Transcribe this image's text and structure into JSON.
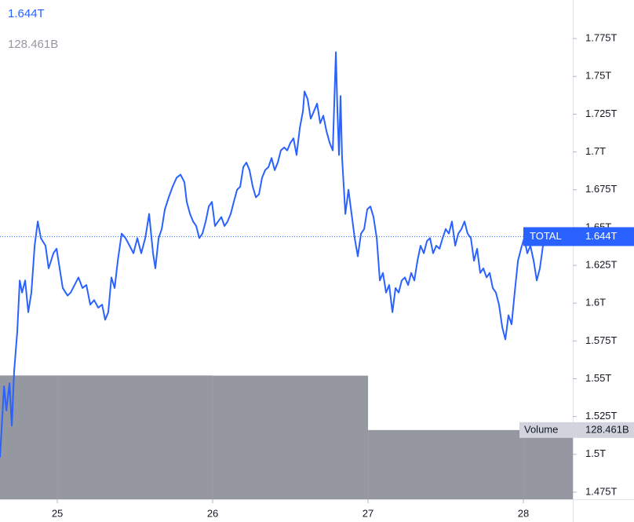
{
  "chart_data": {
    "type": "line",
    "series": [
      {
        "name": "TOTAL",
        "color": "#2962ff",
        "last_label": "1.644T",
        "x": [
          24.631,
          24.657,
          24.672,
          24.692,
          24.707,
          24.722,
          24.742,
          24.758,
          24.773,
          24.793,
          24.813,
          24.833,
          24.854,
          24.874,
          24.894,
          24.924,
          24.944,
          24.975,
          24.995,
          25.015,
          25.035,
          25.066,
          25.086,
          25.111,
          25.136,
          25.162,
          25.187,
          25.212,
          25.237,
          25.263,
          25.288,
          25.308,
          25.328,
          25.348,
          25.369,
          25.389,
          25.414,
          25.439,
          25.465,
          25.49,
          25.515,
          25.54,
          25.566,
          25.591,
          25.616,
          25.631,
          25.652,
          25.672,
          25.692,
          25.717,
          25.742,
          25.768,
          25.793,
          25.818,
          25.833,
          25.854,
          25.874,
          25.894,
          25.914,
          25.934,
          25.955,
          25.975,
          25.995,
          26.015,
          26.035,
          26.056,
          26.076,
          26.096,
          26.116,
          26.136,
          26.157,
          26.177,
          26.197,
          26.217,
          26.237,
          26.258,
          26.278,
          26.298,
          26.318,
          26.338,
          26.359,
          26.379,
          26.399,
          26.419,
          26.439,
          26.46,
          26.48,
          26.5,
          26.52,
          26.54,
          26.561,
          26.581,
          26.591,
          26.611,
          26.631,
          26.652,
          26.672,
          26.692,
          26.712,
          26.732,
          26.753,
          26.773,
          26.793,
          26.803,
          26.813,
          26.823,
          26.833,
          26.854,
          26.874,
          26.894,
          26.914,
          26.934,
          26.955,
          26.975,
          26.995,
          27.015,
          27.035,
          27.056,
          27.076,
          27.096,
          27.116,
          27.136,
          27.157,
          27.177,
          27.197,
          27.217,
          27.237,
          27.258,
          27.278,
          27.298,
          27.318,
          27.338,
          27.359,
          27.379,
          27.399,
          27.419,
          27.439,
          27.46,
          27.48,
          27.5,
          27.52,
          27.54,
          27.561,
          27.581,
          27.601,
          27.621,
          27.641,
          27.662,
          27.682,
          27.702,
          27.722,
          27.742,
          27.763,
          27.783,
          27.803,
          27.823,
          27.843,
          27.864,
          27.884,
          27.904,
          27.924,
          27.944,
          27.965,
          27.985,
          28.005,
          28.025,
          28.045,
          28.066,
          28.086,
          28.106,
          28.126,
          28.146
        ],
        "values": [
          1.498,
          1.545,
          1.529,
          1.547,
          1.519,
          1.555,
          1.581,
          1.615,
          1.607,
          1.615,
          1.594,
          1.607,
          1.638,
          1.654,
          1.643,
          1.638,
          1.623,
          1.633,
          1.636,
          1.623,
          1.61,
          1.605,
          1.607,
          1.612,
          1.617,
          1.61,
          1.612,
          1.599,
          1.602,
          1.597,
          1.599,
          1.589,
          1.594,
          1.617,
          1.61,
          1.628,
          1.646,
          1.643,
          1.638,
          1.633,
          1.643,
          1.633,
          1.643,
          1.659,
          1.633,
          1.623,
          1.643,
          1.649,
          1.662,
          1.67,
          1.677,
          1.683,
          1.685,
          1.68,
          1.667,
          1.659,
          1.654,
          1.651,
          1.643,
          1.646,
          1.654,
          1.664,
          1.667,
          1.651,
          1.654,
          1.657,
          1.651,
          1.654,
          1.659,
          1.667,
          1.675,
          1.677,
          1.69,
          1.693,
          1.688,
          1.677,
          1.67,
          1.672,
          1.683,
          1.688,
          1.69,
          1.696,
          1.688,
          1.693,
          1.701,
          1.703,
          1.701,
          1.706,
          1.709,
          1.698,
          1.716,
          1.727,
          1.74,
          1.735,
          1.722,
          1.727,
          1.732,
          1.719,
          1.724,
          1.714,
          1.706,
          1.701,
          1.766,
          1.727,
          1.698,
          1.737,
          1.696,
          1.659,
          1.675,
          1.659,
          1.643,
          1.631,
          1.646,
          1.649,
          1.662,
          1.664,
          1.657,
          1.643,
          1.615,
          1.62,
          1.607,
          1.612,
          1.594,
          1.61,
          1.607,
          1.615,
          1.617,
          1.612,
          1.62,
          1.615,
          1.628,
          1.638,
          1.633,
          1.641,
          1.643,
          1.633,
          1.638,
          1.636,
          1.643,
          1.649,
          1.646,
          1.654,
          1.638,
          1.646,
          1.649,
          1.654,
          1.646,
          1.643,
          1.628,
          1.636,
          1.62,
          1.623,
          1.617,
          1.62,
          1.61,
          1.607,
          1.599,
          1.584,
          1.576,
          1.592,
          1.586,
          1.607,
          1.628,
          1.636,
          1.643,
          1.633,
          1.638,
          1.628,
          1.615,
          1.623,
          1.638,
          1.644
        ]
      }
    ],
    "volume": {
      "name": "Volume",
      "color": "#9598a1",
      "last_label": "128.461B",
      "x": [
        24,
        25,
        26,
        27,
        28
      ],
      "values": [
        229.8,
        229.8,
        229.5,
        128.5,
        128.461
      ],
      "ylim": [
        0,
        927
      ]
    },
    "xlim": [
      24.631,
      28.318
    ],
    "xticks": [
      25,
      26,
      27,
      28
    ],
    "ylim": [
      1.4703,
      1.8005
    ],
    "yticks": [
      {
        "value": 1.475,
        "label": "1.475T"
      },
      {
        "value": 1.5,
        "label": "1.5T"
      },
      {
        "value": 1.525,
        "label": "1.525T"
      },
      {
        "value": 1.55,
        "label": "1.55T"
      },
      {
        "value": 1.575,
        "label": "1.575T"
      },
      {
        "value": 1.6,
        "label": "1.6T"
      },
      {
        "value": 1.625,
        "label": "1.625T"
      },
      {
        "value": 1.65,
        "label": "1.65T"
      },
      {
        "value": 1.675,
        "label": "1.675T"
      },
      {
        "value": 1.7,
        "label": "1.7T"
      },
      {
        "value": 1.725,
        "label": "1.725T"
      },
      {
        "value": 1.75,
        "label": "1.75T"
      },
      {
        "value": 1.775,
        "label": "1.775T"
      }
    ]
  }
}
